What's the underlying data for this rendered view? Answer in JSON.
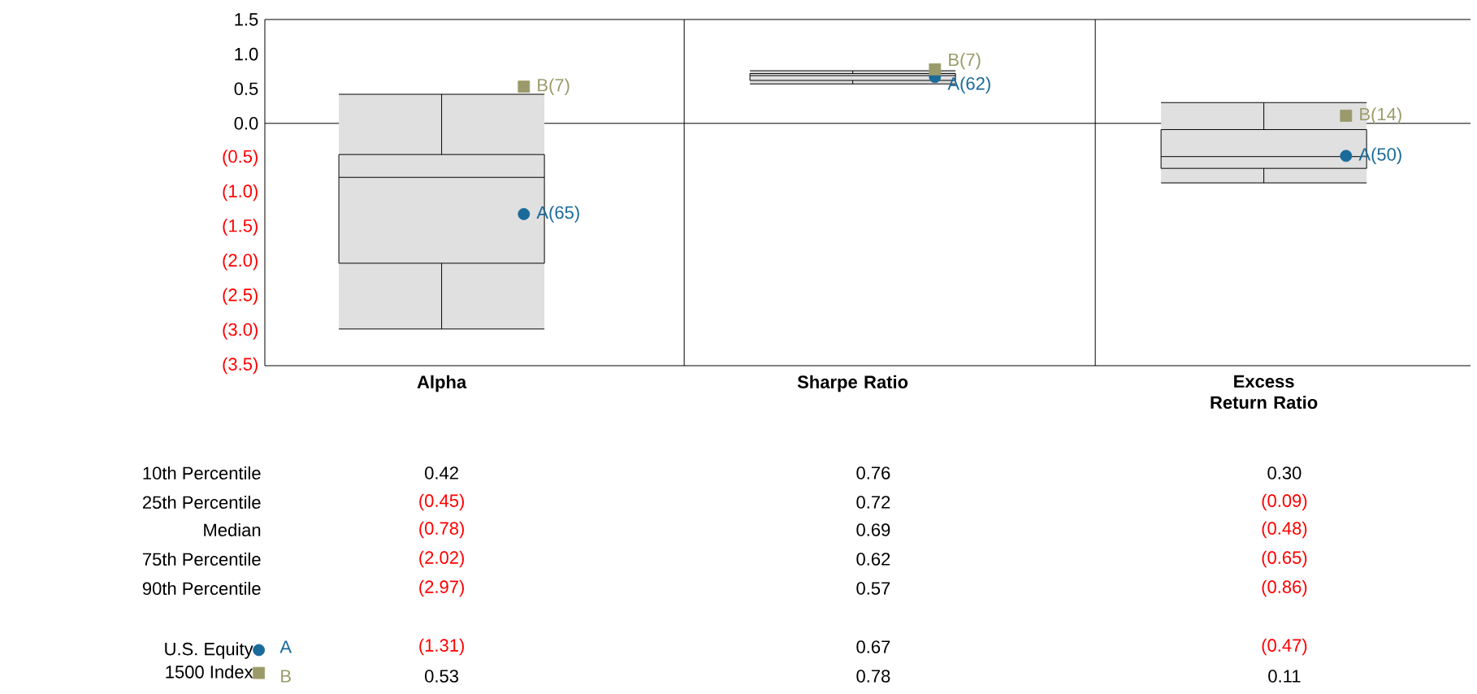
{
  "chart_data": {
    "type": "box",
    "categories": [
      "Alpha",
      "Sharpe Ratio",
      "Excess Return Ratio"
    ],
    "boxes": [
      {
        "low": -2.97,
        "q1": -2.02,
        "median": -0.78,
        "q3": -0.45,
        "high": 0.42
      },
      {
        "low": 0.57,
        "q1": 0.62,
        "median": 0.69,
        "q3": 0.72,
        "high": 0.76
      },
      {
        "low": -0.86,
        "q1": -0.65,
        "median": -0.48,
        "q3": -0.09,
        "high": 0.3
      }
    ],
    "series": [
      {
        "name": "U.S. Equity",
        "type": "scatter",
        "marker": "circle",
        "color": "#1a6a9a",
        "values": [
          -1.31,
          0.67,
          -0.47
        ],
        "value_labels": [
          "(1.31)",
          "0.67",
          "(0.47)"
        ]
      },
      {
        "name": "1500 Index",
        "type": "scatter",
        "marker": "square",
        "color": "#9a9a6a",
        "values": [
          0.53,
          0.78,
          0.11
        ],
        "value_labels": [
          "0.53",
          "0.78",
          "0.11"
        ]
      }
    ],
    "ylim": [
      -3.5,
      1.5
    ],
    "yticks": [
      1.5,
      {
        "value": 1,
        "label": "1.0"
      },
      0.5,
      {
        "value": 0,
        "label": "0.0"
      },
      {
        "value": -0.5,
        "label": "(0.5)"
      },
      {
        "value": -1.0,
        "label": "(1.0)"
      },
      {
        "value": -1.5,
        "label": "(1.5)"
      },
      {
        "value": -2.0,
        "label": "(2.0)"
      },
      {
        "value": -2.5,
        "label": "(2.5)"
      },
      {
        "value": -3.0,
        "label": "(3.0)"
      },
      {
        "value": -3.5,
        "label": "(3.5)"
      }
    ],
    "ref_lines": [
      {
        "axis": "y",
        "value": 0
      }
    ],
    "legend": "bottom left",
    "annotations": [
      "10th Percentile",
      "25th Percentile",
      "Median",
      "75th Percentile",
      "90th Percentile",
      "A",
      "B",
      "0.42",
      "0.76",
      "0.30",
      "(0.45)",
      "0.72",
      "(0.09)",
      "(0.78)",
      "0.69",
      "(0.48)",
      "(2.02)",
      "0.62",
      "(0.65)",
      "(2.97)",
      "0.57",
      "(0.86)",
      "A(65)",
      "B(7)",
      "A(62)",
      "B(7)",
      "A(50)",
      "B(14)"
    ]
  }
}
